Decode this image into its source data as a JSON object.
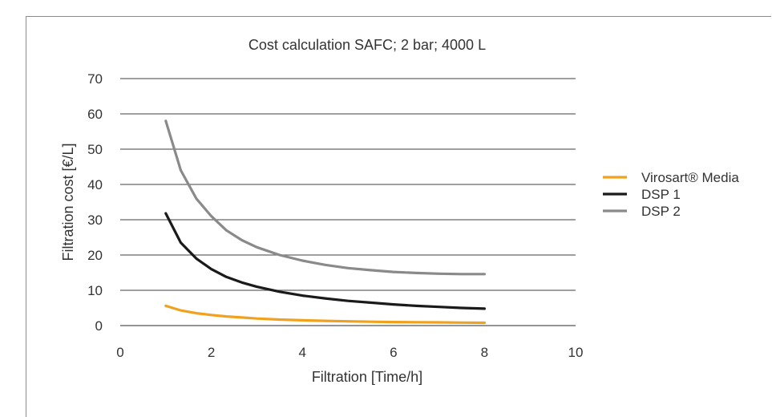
{
  "chart_data": {
    "type": "line",
    "title": "Cost calculation SAFC; 2 bar; 4000 L",
    "xlabel": "Filtration [Time/h]",
    "ylabel": "Filtration cost [€/L]",
    "xlim": [
      0,
      10
    ],
    "ylim": [
      0,
      70
    ],
    "xticks": [
      "0",
      "2",
      "4",
      "6",
      "8",
      "10"
    ],
    "yticks": [
      "0",
      "10",
      "20",
      "30",
      "40",
      "50",
      "60",
      "70"
    ],
    "grid": "horizontal",
    "legend_position": "right",
    "series": [
      {
        "name": "Virosart® Media",
        "color": "#f0a21e",
        "x": [
          1,
          1.33,
          1.67,
          2,
          2.33,
          2.67,
          3,
          3.5,
          4,
          4.5,
          5,
          5.5,
          6,
          6.5,
          7,
          7.5,
          8
        ],
        "y": [
          5.6,
          4.3,
          3.5,
          3.0,
          2.6,
          2.3,
          2.0,
          1.7,
          1.5,
          1.35,
          1.2,
          1.1,
          1.0,
          0.95,
          0.9,
          0.85,
          0.8
        ]
      },
      {
        "name": "DSP 1",
        "color": "#1a1a1a",
        "x": [
          1,
          1.33,
          1.67,
          2,
          2.33,
          2.67,
          3,
          3.5,
          4,
          4.5,
          5,
          5.5,
          6,
          6.5,
          7,
          7.5,
          8
        ],
        "y": [
          31.8,
          23.5,
          19.0,
          16.0,
          13.8,
          12.2,
          11.0,
          9.6,
          8.5,
          7.7,
          7.0,
          6.5,
          6.0,
          5.6,
          5.3,
          5.0,
          4.8
        ]
      },
      {
        "name": "DSP 2",
        "color": "#8a8a8a",
        "x": [
          1,
          1.33,
          1.67,
          2,
          2.33,
          2.67,
          3,
          3.5,
          4,
          4.5,
          5,
          5.5,
          6,
          6.5,
          7,
          7.5,
          8
        ],
        "y": [
          58.0,
          44.0,
          36.0,
          31.0,
          27.0,
          24.2,
          22.2,
          20.0,
          18.4,
          17.2,
          16.3,
          15.7,
          15.2,
          14.9,
          14.7,
          14.6,
          14.6
        ]
      }
    ]
  }
}
